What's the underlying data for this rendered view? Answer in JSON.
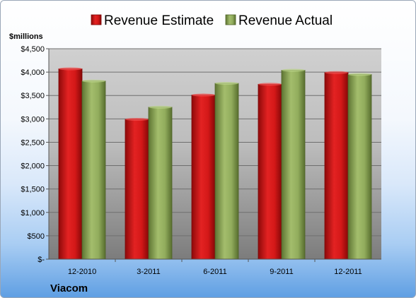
{
  "chart_data": {
    "type": "bar",
    "title": "",
    "unit_label": "$millions",
    "company": "Viacom",
    "xlabel": "",
    "ylabel": "",
    "categories": [
      "12-2010",
      "3-2011",
      "6-2011",
      "9-2011",
      "12-2011"
    ],
    "series": [
      {
        "name": "Revenue Estimate",
        "color": "#cc1111",
        "values": [
          4070,
          2990,
          3510,
          3740,
          3990
        ]
      },
      {
        "name": "Revenue Actual",
        "color": "#8fa85a",
        "values": [
          3810,
          3250,
          3760,
          4040,
          3950
        ]
      }
    ],
    "ylim": [
      0,
      4500
    ],
    "y_ticks": [
      0,
      500,
      1000,
      1500,
      2000,
      2500,
      3000,
      3500,
      4000,
      4500
    ],
    "y_tick_labels": [
      "$-",
      "$500",
      "$1,000",
      "$1,500",
      "$2,000",
      "$2,500",
      "$3,000",
      "$3,500",
      "$4,000",
      "$4,500"
    ],
    "grid": true,
    "legend_position": "top"
  }
}
